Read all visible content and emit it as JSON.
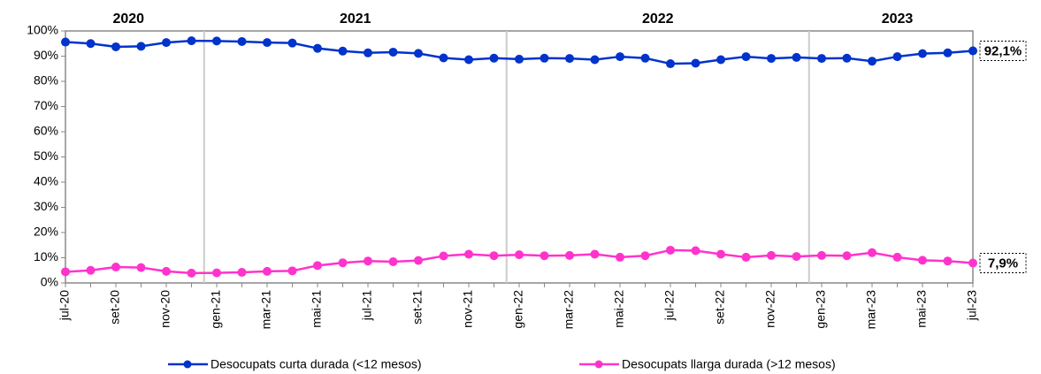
{
  "chart_data": {
    "type": "line",
    "annotations": [
      "2020",
      "2021",
      "2022",
      "2023"
    ],
    "categories": [
      "jul-20",
      null,
      "set-20",
      null,
      "nov-20",
      null,
      "gen-21",
      null,
      "mar-21",
      null,
      "mai-21",
      null,
      "jul-21",
      null,
      "set-21",
      null,
      "nov-21",
      null,
      "gen-22",
      null,
      "mar-22",
      null,
      "mai-22",
      null,
      "jul-22",
      null,
      "set-22",
      null,
      "nov-22",
      null,
      "gen-23",
      null,
      "mar-23",
      null,
      "mai-23",
      null,
      "jul-23"
    ],
    "series": [
      {
        "name": "Desocupats curta durada (<12 mesos)",
        "color": "#0033cc",
        "values": [
          95.6,
          95,
          93.7,
          93.9,
          95.4,
          96.1,
          96,
          95.8,
          95.4,
          95.2,
          93.1,
          92,
          91.3,
          91.6,
          91.1,
          89.3,
          88.6,
          89.2,
          88.8,
          89.2,
          89.1,
          88.6,
          89.8,
          89.2,
          87,
          87.2,
          88.6,
          89.8,
          89.1,
          89.5,
          89.1,
          89.2,
          88,
          89.8,
          91,
          91.3,
          92.1
        ],
        "value_labels": [
          null,
          null,
          null,
          null,
          null,
          null,
          null,
          null,
          null,
          null,
          null,
          null,
          null,
          null,
          null,
          null,
          null,
          null,
          null,
          null,
          null,
          null,
          null,
          null,
          null,
          null,
          null,
          null,
          null,
          null,
          null,
          null,
          null,
          null,
          null,
          null,
          "92,1%"
        ]
      },
      {
        "name": "Desocupats llarga durada (>12 mesos)",
        "color": "#ff33cc",
        "values": [
          4.4,
          5,
          6.3,
          6.1,
          4.6,
          3.9,
          4,
          4.2,
          4.6,
          4.8,
          6.9,
          8,
          8.7,
          8.4,
          8.9,
          10.7,
          11.4,
          10.8,
          11.2,
          10.8,
          10.9,
          11.4,
          10.2,
          10.8,
          13,
          12.8,
          11.4,
          10.2,
          10.9,
          10.5,
          10.9,
          10.8,
          12,
          10.2,
          9,
          8.7,
          7.9
        ],
        "value_labels": [
          null,
          null,
          null,
          null,
          null,
          null,
          null,
          null,
          null,
          null,
          null,
          null,
          null,
          null,
          null,
          null,
          null,
          null,
          null,
          null,
          null,
          null,
          null,
          null,
          null,
          null,
          null,
          null,
          null,
          null,
          null,
          null,
          null,
          null,
          null,
          null,
          "7,9%"
        ]
      }
    ],
    "ylim": [
      0,
      100
    ],
    "yticks": [
      {
        "value": 0,
        "label": "0%"
      },
      {
        "value": 10,
        "label": "10%"
      },
      {
        "value": 20,
        "label": "20%"
      },
      {
        "value": 30,
        "label": "30%"
      },
      {
        "value": 40,
        "label": "40%"
      },
      {
        "value": 50,
        "label": "50%"
      },
      {
        "value": 60,
        "label": "60%"
      },
      {
        "value": 70,
        "label": "70%"
      },
      {
        "value": 80,
        "label": "80%"
      },
      {
        "value": 90,
        "label": "90%"
      },
      {
        "value": 100,
        "label": "100%"
      }
    ],
    "legend": "bottom"
  }
}
